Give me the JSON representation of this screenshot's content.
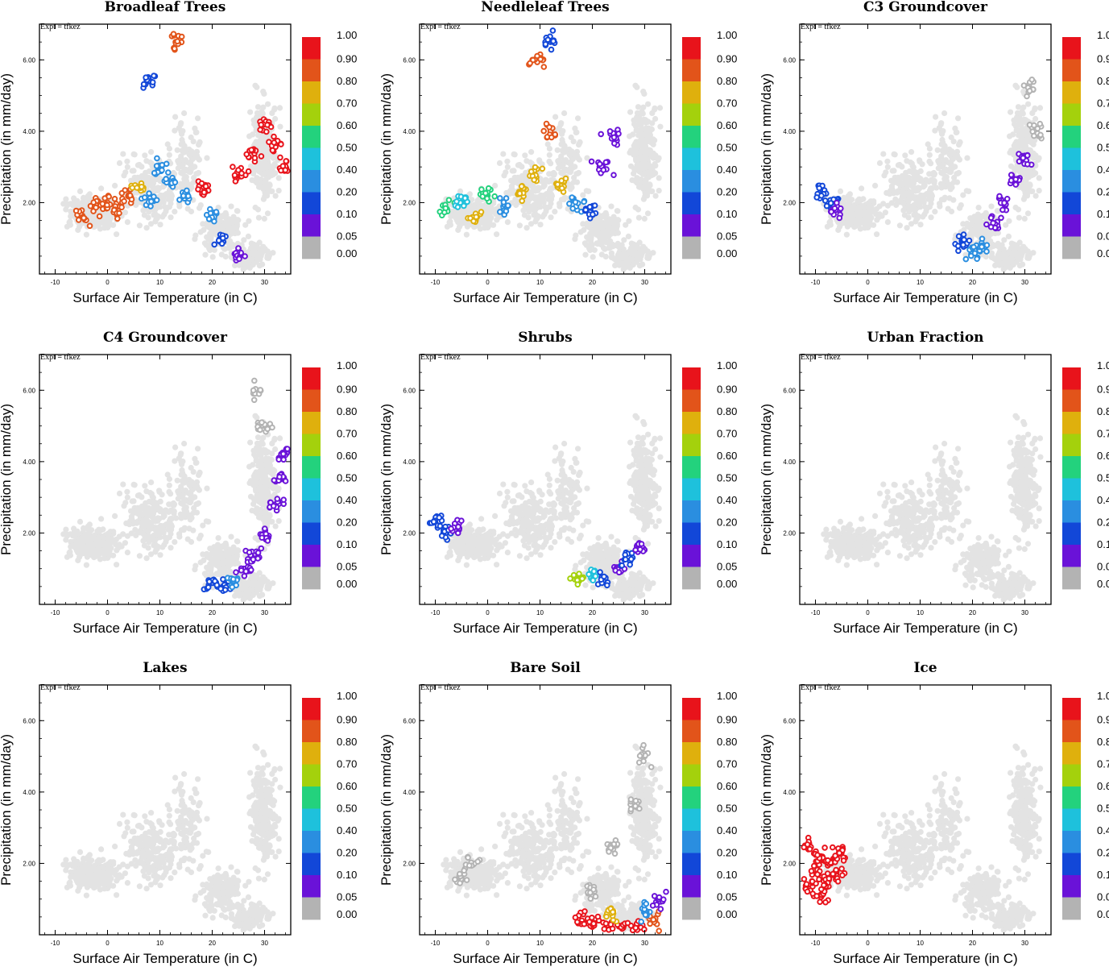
{
  "figure": {
    "expt_label": "Expt = tfkez",
    "xlabel": "Surface Air Temperature (in C)",
    "ylabel": "Precipitation (in mm/day)",
    "xticks": [
      "-10",
      "0",
      "10",
      "20",
      "30"
    ],
    "yticks": [
      "2.00",
      "4.00",
      "6.00"
    ],
    "colorbar_levels": [
      "1.00",
      "0.90",
      "0.80",
      "0.70",
      "0.60",
      "0.50",
      "0.40",
      "0.20",
      "0.10",
      "0.05",
      "0.00"
    ],
    "colorbar_colors": [
      "#e8131b",
      "#e2541a",
      "#dfb00d",
      "#a4d10c",
      "#23d27d",
      "#1ec1dc",
      "#2a8ee0",
      "#1247d8",
      "#6a12d8",
      "#b3b3b3"
    ],
    "background_point_color": "#e3e3e3"
  },
  "chart_data": [
    {
      "type": "scatter",
      "title": "Broadleaf Trees",
      "xlabel": "Surface Air Temperature (in C)",
      "ylabel": "Precipitation (in mm/day)",
      "xlim": [
        -13,
        35
      ],
      "ylim": [
        0,
        7
      ],
      "grid": false,
      "legend": "colorbar-right",
      "series": [
        {
          "values": [
            {
              "x": -5,
              "y": 1.6,
              "v": 0.85
            },
            {
              "x": -2,
              "y": 1.9,
              "v": 0.8
            },
            {
              "x": 0,
              "y": 2.0,
              "v": 0.8
            },
            {
              "x": 2,
              "y": 1.8,
              "v": 0.85
            },
            {
              "x": 4,
              "y": 2.2,
              "v": 0.8
            },
            {
              "x": 6,
              "y": 2.4,
              "v": 0.75
            },
            {
              "x": 8,
              "y": 2.0,
              "v": 0.3
            },
            {
              "x": 10,
              "y": 3.0,
              "v": 0.3
            },
            {
              "x": 12,
              "y": 2.6,
              "v": 0.25
            },
            {
              "x": 15,
              "y": 2.2,
              "v": 0.3
            },
            {
              "x": 18,
              "y": 2.4,
              "v": 0.95
            },
            {
              "x": 20,
              "y": 1.6,
              "v": 0.3
            },
            {
              "x": 22,
              "y": 0.9,
              "v": 0.1
            },
            {
              "x": 25,
              "y": 2.8,
              "v": 0.95
            },
            {
              "x": 28,
              "y": 3.4,
              "v": 0.95
            },
            {
              "x": 30,
              "y": 4.2,
              "v": 0.95
            },
            {
              "x": 32,
              "y": 3.6,
              "v": 0.95
            },
            {
              "x": 34,
              "y": 3.0,
              "v": 0.9
            },
            {
              "x": 13,
              "y": 6.5,
              "v": 0.8
            },
            {
              "x": 8,
              "y": 5.4,
              "v": 0.15
            },
            {
              "x": 25,
              "y": 0.5,
              "v": 0.05
            }
          ]
        }
      ]
    },
    {
      "type": "scatter",
      "title": "Needleleaf Trees",
      "xlabel": "Surface Air Temperature (in C)",
      "ylabel": "Precipitation (in mm/day)",
      "xlim": [
        -13,
        35
      ],
      "ylim": [
        0,
        7
      ],
      "grid": false,
      "legend": "colorbar-right",
      "series": [
        {
          "values": [
            {
              "x": -8,
              "y": 1.8,
              "v": 0.55
            },
            {
              "x": -5,
              "y": 2.0,
              "v": 0.45
            },
            {
              "x": -2,
              "y": 1.6,
              "v": 0.7
            },
            {
              "x": 0,
              "y": 2.2,
              "v": 0.5
            },
            {
              "x": 3,
              "y": 1.9,
              "v": 0.3
            },
            {
              "x": 6,
              "y": 2.3,
              "v": 0.7
            },
            {
              "x": 9,
              "y": 2.8,
              "v": 0.7
            },
            {
              "x": 12,
              "y": 4.0,
              "v": 0.8
            },
            {
              "x": 14,
              "y": 2.5,
              "v": 0.7
            },
            {
              "x": 17,
              "y": 2.0,
              "v": 0.2
            },
            {
              "x": 20,
              "y": 1.7,
              "v": 0.15
            },
            {
              "x": 22,
              "y": 3.0,
              "v": 0.05
            },
            {
              "x": 24,
              "y": 3.8,
              "v": 0.05
            },
            {
              "x": 12,
              "y": 6.5,
              "v": 0.15
            },
            {
              "x": 9,
              "y": 6.0,
              "v": 0.85
            }
          ]
        }
      ]
    },
    {
      "type": "scatter",
      "title": "C3 Groundcover",
      "xlabel": "Surface Air Temperature (in C)",
      "ylabel": "Precipitation (in mm/day)",
      "xlim": [
        -13,
        35
      ],
      "ylim": [
        0,
        7
      ],
      "grid": false,
      "legend": "colorbar-right",
      "series": [
        {
          "values": [
            {
              "x": -9,
              "y": 2.3,
              "v": 0.15
            },
            {
              "x": -7,
              "y": 2.0,
              "v": 0.1
            },
            {
              "x": -6,
              "y": 1.8,
              "v": 0.05
            },
            {
              "x": 18,
              "y": 0.9,
              "v": 0.1
            },
            {
              "x": 20,
              "y": 0.6,
              "v": 0.35
            },
            {
              "x": 22,
              "y": 0.7,
              "v": 0.3
            },
            {
              "x": 24,
              "y": 1.4,
              "v": 0.05
            },
            {
              "x": 26,
              "y": 2.0,
              "v": 0.05
            },
            {
              "x": 28,
              "y": 2.6,
              "v": 0.05
            },
            {
              "x": 30,
              "y": 3.2,
              "v": 0.05
            },
            {
              "x": 32,
              "y": 4.0,
              "v": 0.02
            },
            {
              "x": 31,
              "y": 5.2,
              "v": 0.0
            }
          ]
        }
      ]
    },
    {
      "type": "scatter",
      "title": "C4 Groundcover",
      "xlabel": "Surface Air Temperature (in C)",
      "ylabel": "Precipitation (in mm/day)",
      "xlim": [
        -13,
        35
      ],
      "ylim": [
        0,
        7
      ],
      "grid": false,
      "legend": "colorbar-right",
      "series": [
        {
          "values": [
            {
              "x": 20,
              "y": 0.6,
              "v": 0.15
            },
            {
              "x": 22,
              "y": 0.5,
              "v": 0.1
            },
            {
              "x": 24,
              "y": 0.7,
              "v": 0.3
            },
            {
              "x": 26,
              "y": 1.0,
              "v": 0.05
            },
            {
              "x": 28,
              "y": 1.4,
              "v": 0.05
            },
            {
              "x": 30,
              "y": 2.0,
              "v": 0.05
            },
            {
              "x": 32,
              "y": 2.8,
              "v": 0.05
            },
            {
              "x": 33,
              "y": 3.5,
              "v": 0.05
            },
            {
              "x": 34,
              "y": 4.2,
              "v": 0.05
            },
            {
              "x": 30,
              "y": 5.0,
              "v": 0.0
            },
            {
              "x": 29,
              "y": 6.0,
              "v": 0.0
            }
          ]
        }
      ]
    },
    {
      "type": "scatter",
      "title": "Shrubs",
      "xlabel": "Surface Air Temperature (in C)",
      "ylabel": "Precipitation (in mm/day)",
      "xlim": [
        -13,
        35
      ],
      "ylim": [
        0,
        7
      ],
      "grid": false,
      "legend": "colorbar-right",
      "series": [
        {
          "values": [
            {
              "x": -10,
              "y": 2.3,
              "v": 0.1
            },
            {
              "x": -8,
              "y": 2.0,
              "v": 0.1
            },
            {
              "x": -6,
              "y": 2.2,
              "v": 0.05
            },
            {
              "x": 17,
              "y": 0.7,
              "v": 0.6
            },
            {
              "x": 20,
              "y": 0.8,
              "v": 0.4
            },
            {
              "x": 22,
              "y": 0.7,
              "v": 0.1
            },
            {
              "x": 25,
              "y": 1.0,
              "v": 0.05
            },
            {
              "x": 27,
              "y": 1.3,
              "v": 0.1
            },
            {
              "x": 29,
              "y": 1.6,
              "v": 0.05
            }
          ]
        }
      ]
    },
    {
      "type": "scatter",
      "title": "Urban Fraction",
      "xlabel": "Surface Air Temperature (in C)",
      "ylabel": "Precipitation (in mm/day)",
      "xlim": [
        -13,
        35
      ],
      "ylim": [
        0,
        7
      ],
      "grid": false,
      "legend": "colorbar-right",
      "series": [
        {
          "values": []
        }
      ]
    },
    {
      "type": "scatter",
      "title": "Lakes",
      "xlabel": "Surface Air Temperature (in C)",
      "ylabel": "Precipitation (in mm/day)",
      "xlim": [
        -13,
        35
      ],
      "ylim": [
        0,
        7
      ],
      "grid": false,
      "legend": "colorbar-right",
      "series": [
        {
          "values": []
        }
      ]
    },
    {
      "type": "scatter",
      "title": "Bare Soil",
      "xlabel": "Surface Air Temperature (in C)",
      "ylabel": "Precipitation (in mm/day)",
      "xlim": [
        -13,
        35
      ],
      "ylim": [
        0,
        7
      ],
      "grid": false,
      "legend": "colorbar-right",
      "series": [
        {
          "values": [
            {
              "x": -5,
              "y": 1.6,
              "v": 0.0
            },
            {
              "x": -3,
              "y": 2.0,
              "v": 0.0
            },
            {
              "x": 20,
              "y": 1.2,
              "v": 0.0
            },
            {
              "x": 24,
              "y": 2.4,
              "v": 0.0
            },
            {
              "x": 28,
              "y": 3.6,
              "v": 0.0
            },
            {
              "x": 30,
              "y": 5.0,
              "v": 0.0
            },
            {
              "x": 18,
              "y": 0.4,
              "v": 0.9
            },
            {
              "x": 20,
              "y": 0.3,
              "v": 0.95
            },
            {
              "x": 23,
              "y": 0.2,
              "v": 0.95
            },
            {
              "x": 26,
              "y": 0.25,
              "v": 0.95
            },
            {
              "x": 29,
              "y": 0.3,
              "v": 0.95
            },
            {
              "x": 32,
              "y": 0.4,
              "v": 0.85
            },
            {
              "x": 24,
              "y": 0.6,
              "v": 0.7
            },
            {
              "x": 30,
              "y": 0.7,
              "v": 0.3
            },
            {
              "x": 33,
              "y": 1.0,
              "v": 0.05
            }
          ]
        }
      ]
    },
    {
      "type": "scatter",
      "title": "Ice",
      "xlabel": "Surface Air Temperature (in C)",
      "ylabel": "Precipitation (in mm/day)",
      "xlim": [
        -13,
        35
      ],
      "ylim": [
        0,
        7
      ],
      "grid": false,
      "legend": "colorbar-right",
      "series": [
        {
          "values": [
            {
              "x": -11,
              "y": 1.3,
              "v": 1.0
            },
            {
              "x": -10,
              "y": 1.8,
              "v": 1.0
            },
            {
              "x": -9,
              "y": 2.2,
              "v": 1.0
            },
            {
              "x": -8,
              "y": 1.5,
              "v": 1.0
            },
            {
              "x": -7,
              "y": 2.0,
              "v": 1.0
            },
            {
              "x": -6,
              "y": 1.7,
              "v": 1.0
            },
            {
              "x": -5,
              "y": 2.3,
              "v": 1.0
            },
            {
              "x": -12,
              "y": 2.5,
              "v": 1.0
            },
            {
              "x": -9,
              "y": 1.1,
              "v": 1.0
            }
          ]
        }
      ]
    }
  ]
}
